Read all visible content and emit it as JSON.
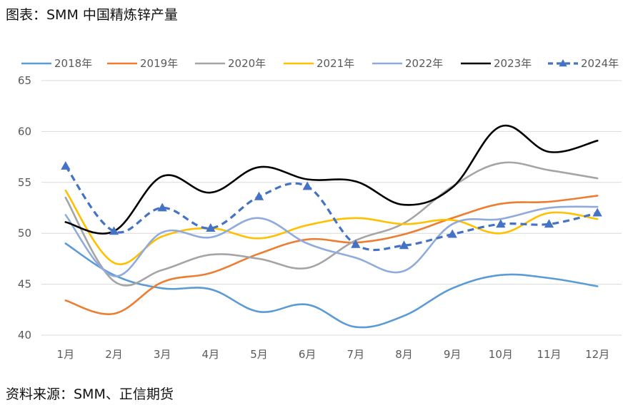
{
  "header": {
    "title": "图表：SMM 中国精炼锌产量"
  },
  "footer": {
    "source": "资料来源：SMM、正信期货"
  },
  "chart_data": {
    "type": "line",
    "title": "图表：SMM 中国精炼锌产量",
    "xlabel": "",
    "ylabel": "",
    "categories": [
      "1月",
      "2月",
      "3月",
      "4月",
      "5月",
      "6月",
      "7月",
      "8月",
      "9月",
      "10月",
      "11月",
      "12月"
    ],
    "ylim": [
      40,
      65
    ],
    "yticks": [
      40,
      45,
      50,
      55,
      60,
      65
    ],
    "grid": true,
    "legend_position": "top",
    "series": [
      {
        "name": "2018年",
        "color": "#5B9BD5",
        "dashed": false,
        "marker": "none",
        "values": [
          49.0,
          45.9,
          44.6,
          44.5,
          42.3,
          43.0,
          40.8,
          41.9,
          44.6,
          45.9,
          45.6,
          44.8
        ]
      },
      {
        "name": "2019年",
        "color": "#ED7D31",
        "dashed": false,
        "marker": "none",
        "values": [
          43.4,
          42.1,
          45.2,
          46.1,
          48.0,
          49.4,
          49.1,
          49.9,
          51.5,
          52.9,
          53.1,
          53.7
        ]
      },
      {
        "name": "2020年",
        "color": "#A5A5A5",
        "dashed": false,
        "marker": "none",
        "values": [
          53.5,
          45.3,
          46.4,
          47.9,
          47.5,
          46.6,
          49.3,
          51.0,
          54.6,
          56.9,
          56.2,
          55.4
        ]
      },
      {
        "name": "2021年",
        "color": "#FFC000",
        "dashed": false,
        "marker": "none",
        "values": [
          54.2,
          47.1,
          49.7,
          50.5,
          49.5,
          50.8,
          51.5,
          50.9,
          51.3,
          50.0,
          52.0,
          51.4
        ]
      },
      {
        "name": "2022年",
        "color": "#8FAADC",
        "dashed": false,
        "marker": "none",
        "values": [
          51.8,
          45.8,
          50.1,
          49.6,
          51.5,
          49.0,
          47.6,
          46.3,
          50.9,
          51.4,
          52.5,
          52.6
        ]
      },
      {
        "name": "2023年",
        "color": "#000000",
        "dashed": false,
        "marker": "none",
        "values": [
          51.1,
          50.2,
          55.6,
          54.0,
          56.5,
          55.3,
          55.1,
          52.8,
          54.5,
          60.5,
          58.0,
          59.1
        ]
      },
      {
        "name": "2024年",
        "color": "#4472C4",
        "dashed": true,
        "marker": "triangle",
        "values": [
          56.6,
          50.2,
          52.5,
          50.5,
          53.6,
          54.6,
          48.9,
          48.8,
          49.9,
          50.9,
          50.9,
          52.0
        ]
      }
    ]
  }
}
